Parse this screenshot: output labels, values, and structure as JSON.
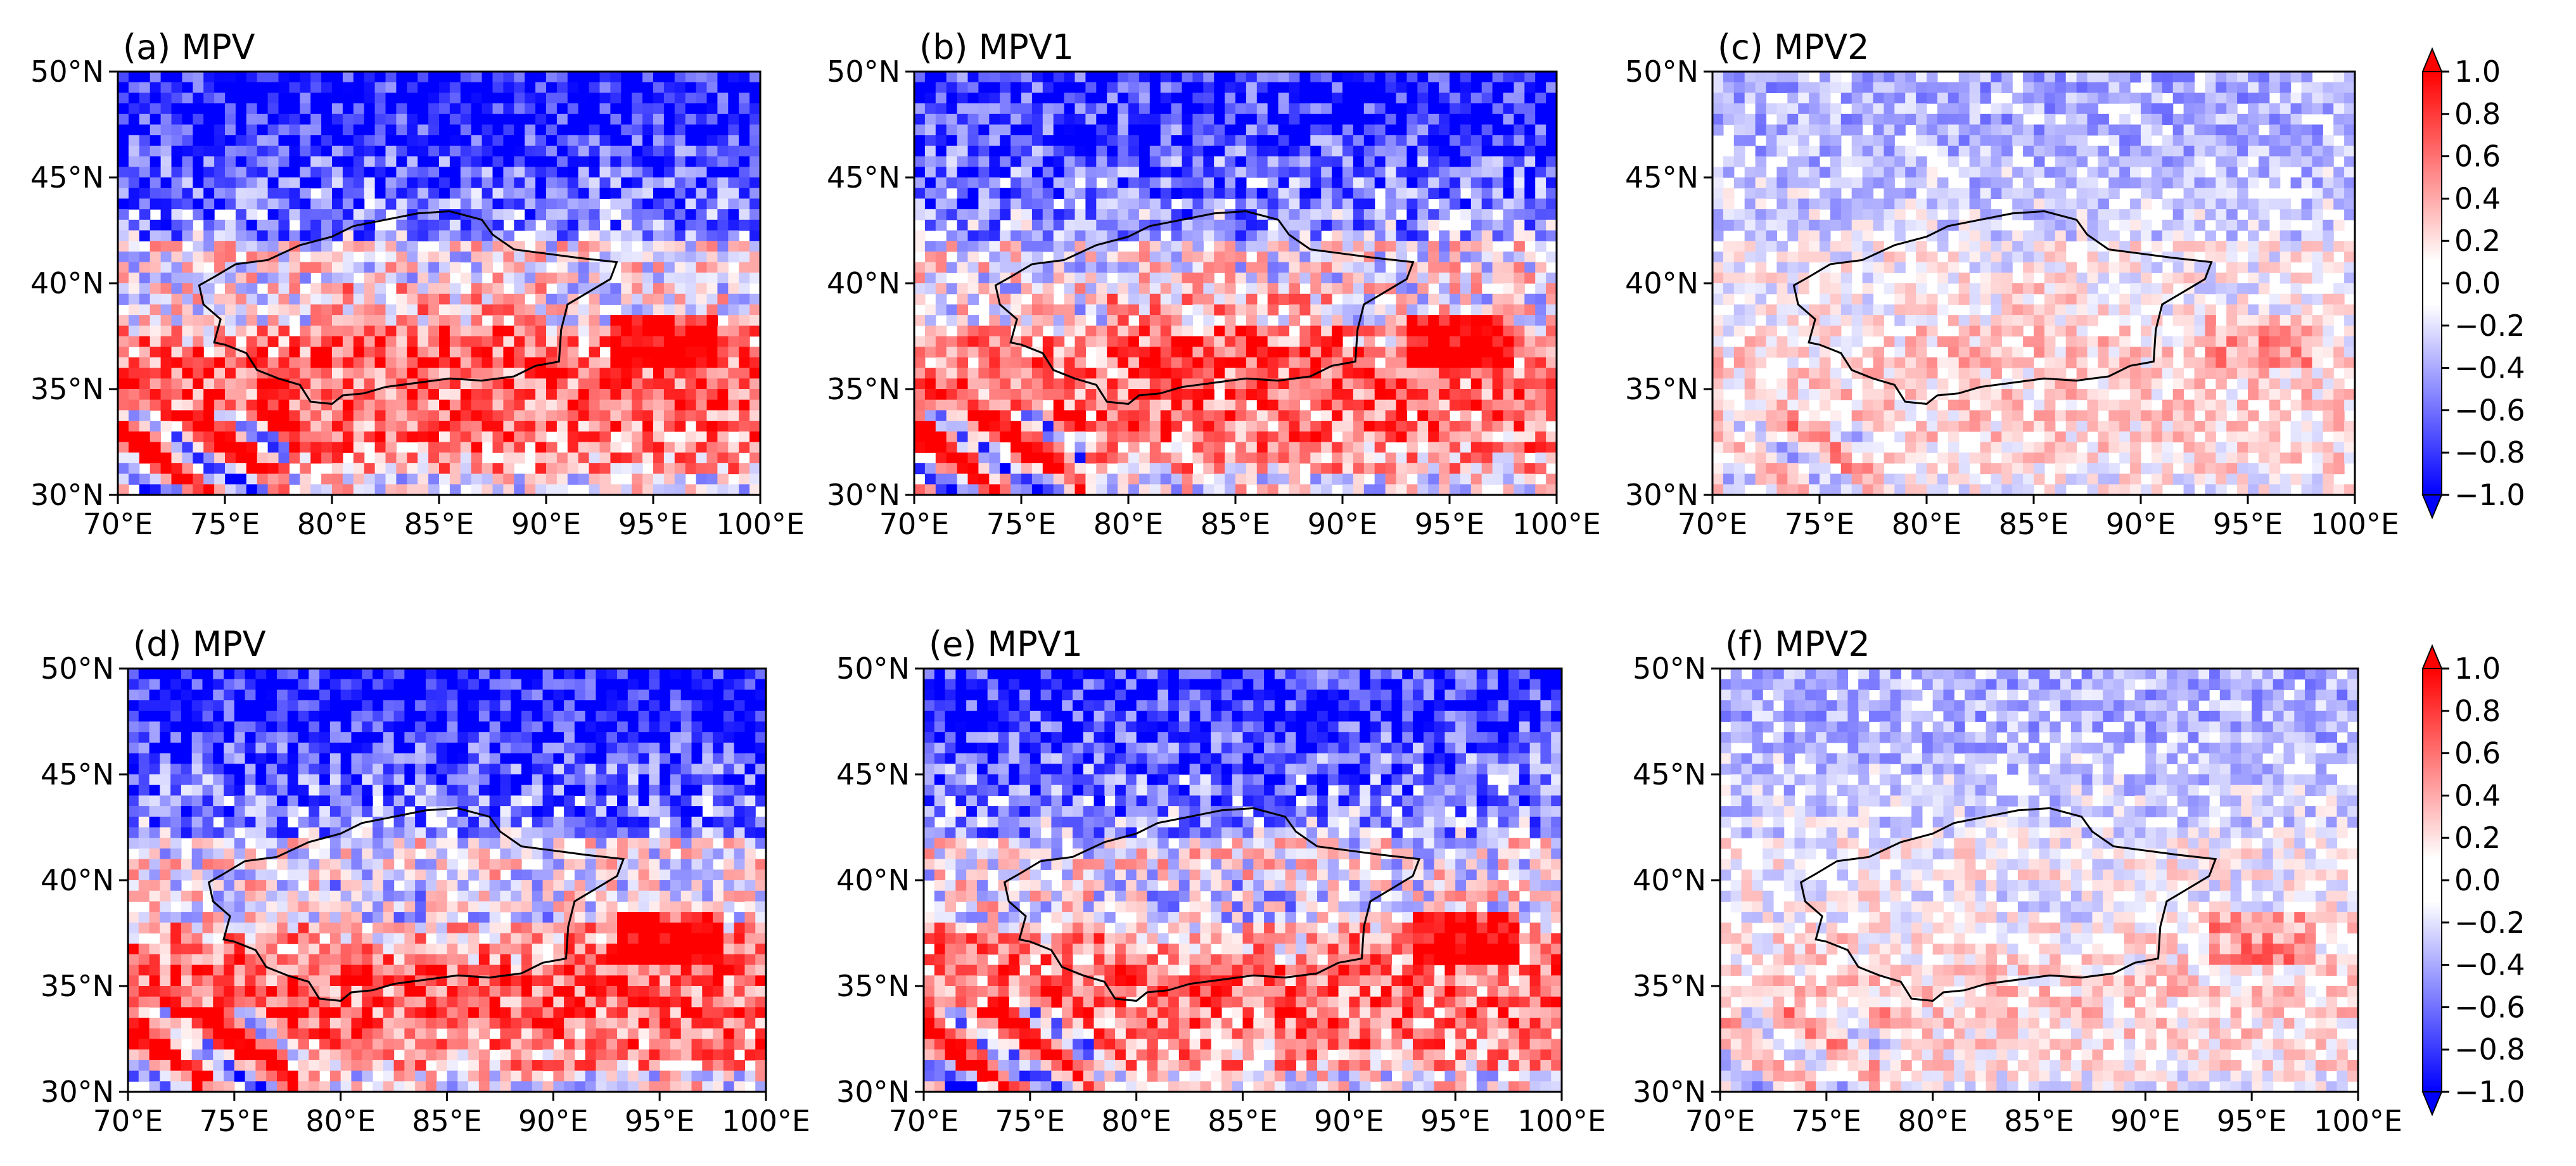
{
  "figure": {
    "colormap": "bwr",
    "colors": {
      "negative_end": "#0000ff",
      "zero": "#ffffff",
      "positive_end": "#ff0000",
      "outline": "#000000"
    }
  },
  "chart_data": [
    {
      "type": "heatmap",
      "title": "(a) MPV",
      "variable": "MPV",
      "xlim": [
        70,
        100
      ],
      "ylim": [
        30,
        50
      ],
      "xticks": [
        "70°E",
        "75°E",
        "80°E",
        "85°E",
        "90°E",
        "95°E",
        "100°E"
      ],
      "yticks": [
        "30°N",
        "35°N",
        "40°N",
        "45°N",
        "50°N"
      ],
      "grid": false
    },
    {
      "type": "heatmap",
      "title": "(b) MPV1",
      "variable": "MPV1",
      "xlim": [
        70,
        100
      ],
      "ylim": [
        30,
        50
      ],
      "xticks": [
        "70°E",
        "75°E",
        "80°E",
        "85°E",
        "90°E",
        "95°E",
        "100°E"
      ],
      "yticks": [
        "30°N",
        "35°N",
        "40°N",
        "45°N",
        "50°N"
      ],
      "grid": false
    },
    {
      "type": "heatmap",
      "title": "(c) MPV2",
      "variable": "MPV2",
      "xlim": [
        70,
        100
      ],
      "ylim": [
        30,
        50
      ],
      "xticks": [
        "70°E",
        "75°E",
        "80°E",
        "85°E",
        "90°E",
        "95°E",
        "100°E"
      ],
      "yticks": [
        "30°N",
        "35°N",
        "40°N",
        "45°N",
        "50°N"
      ],
      "grid": false
    },
    {
      "type": "heatmap",
      "title": "(d) MPV",
      "variable": "MPV",
      "xlim": [
        70,
        100
      ],
      "ylim": [
        30,
        50
      ],
      "xticks": [
        "70°E",
        "75°E",
        "80°E",
        "85°E",
        "90°E",
        "95°E",
        "100°E"
      ],
      "yticks": [
        "30°N",
        "35°N",
        "40°N",
        "45°N",
        "50°N"
      ],
      "grid": false
    },
    {
      "type": "heatmap",
      "title": "(e) MPV1",
      "variable": "MPV1",
      "xlim": [
        70,
        100
      ],
      "ylim": [
        30,
        50
      ],
      "xticks": [
        "70°E",
        "75°E",
        "80°E",
        "85°E",
        "90°E",
        "95°E",
        "100°E"
      ],
      "yticks": [
        "30°N",
        "35°N",
        "40°N",
        "45°N",
        "50°N"
      ],
      "grid": false
    },
    {
      "type": "heatmap",
      "title": "(f) MPV2",
      "variable": "MPV2",
      "xlim": [
        70,
        100
      ],
      "ylim": [
        30,
        50
      ],
      "xticks": [
        "70°E",
        "75°E",
        "80°E",
        "85°E",
        "90°E",
        "95°E",
        "100°E"
      ],
      "yticks": [
        "30°N",
        "35°N",
        "40°N",
        "45°N",
        "50°N"
      ],
      "grid": false
    }
  ],
  "colorbars": [
    {
      "range": [
        -1.0,
        1.0
      ],
      "extend": "both",
      "ticks": [
        1.0,
        0.8,
        0.6,
        0.4,
        0.2,
        0.0,
        -0.2,
        -0.4,
        -0.6,
        -0.8,
        -1.0
      ],
      "tick_labels": [
        "1.0",
        "0.8",
        "0.6",
        "0.4",
        "0.2",
        "0.0",
        "−0.2",
        "−0.4",
        "−0.6",
        "−0.8",
        "−1.0"
      ]
    },
    {
      "range": [
        -1.0,
        1.0
      ],
      "extend": "both",
      "ticks": [
        1.0,
        0.8,
        0.6,
        0.4,
        0.2,
        0.0,
        -0.2,
        -0.4,
        -0.6,
        -0.8,
        -1.0
      ],
      "tick_labels": [
        "1.0",
        "0.8",
        "0.6",
        "0.4",
        "0.2",
        "0.0",
        "−0.2",
        "−0.4",
        "−0.6",
        "−0.8",
        "−1.0"
      ]
    }
  ],
  "boundary_outline": {
    "name": "study-region",
    "lonlat": [
      [
        73.8,
        39.9
      ],
      [
        74.5,
        40.3
      ],
      [
        75.5,
        40.9
      ],
      [
        77,
        41.1
      ],
      [
        78.5,
        41.8
      ],
      [
        80,
        42.2
      ],
      [
        81,
        42.7
      ],
      [
        82.5,
        43.0
      ],
      [
        84,
        43.3
      ],
      [
        85.5,
        43.4
      ],
      [
        87,
        43.0
      ],
      [
        87.5,
        42.3
      ],
      [
        88.5,
        41.6
      ],
      [
        90,
        41.4
      ],
      [
        91.5,
        41.2
      ],
      [
        93.3,
        41.0
      ],
      [
        93.0,
        40.2
      ],
      [
        92.0,
        39.6
      ],
      [
        91.0,
        39.0
      ],
      [
        90.7,
        37.8
      ],
      [
        90.6,
        36.3
      ],
      [
        89.5,
        36.1
      ],
      [
        88.5,
        35.6
      ],
      [
        87,
        35.4
      ],
      [
        85.5,
        35.5
      ],
      [
        84,
        35.3
      ],
      [
        82.5,
        35.1
      ],
      [
        81.5,
        34.8
      ],
      [
        80.5,
        34.7
      ],
      [
        80,
        34.3
      ],
      [
        79,
        34.4
      ],
      [
        78.5,
        35.2
      ],
      [
        77.5,
        35.5
      ],
      [
        76.5,
        35.9
      ],
      [
        76,
        36.7
      ],
      [
        75,
        37.1
      ],
      [
        74.5,
        37.2
      ],
      [
        74.8,
        38.3
      ],
      [
        74.0,
        39.0
      ],
      [
        73.8,
        39.9
      ]
    ]
  }
}
